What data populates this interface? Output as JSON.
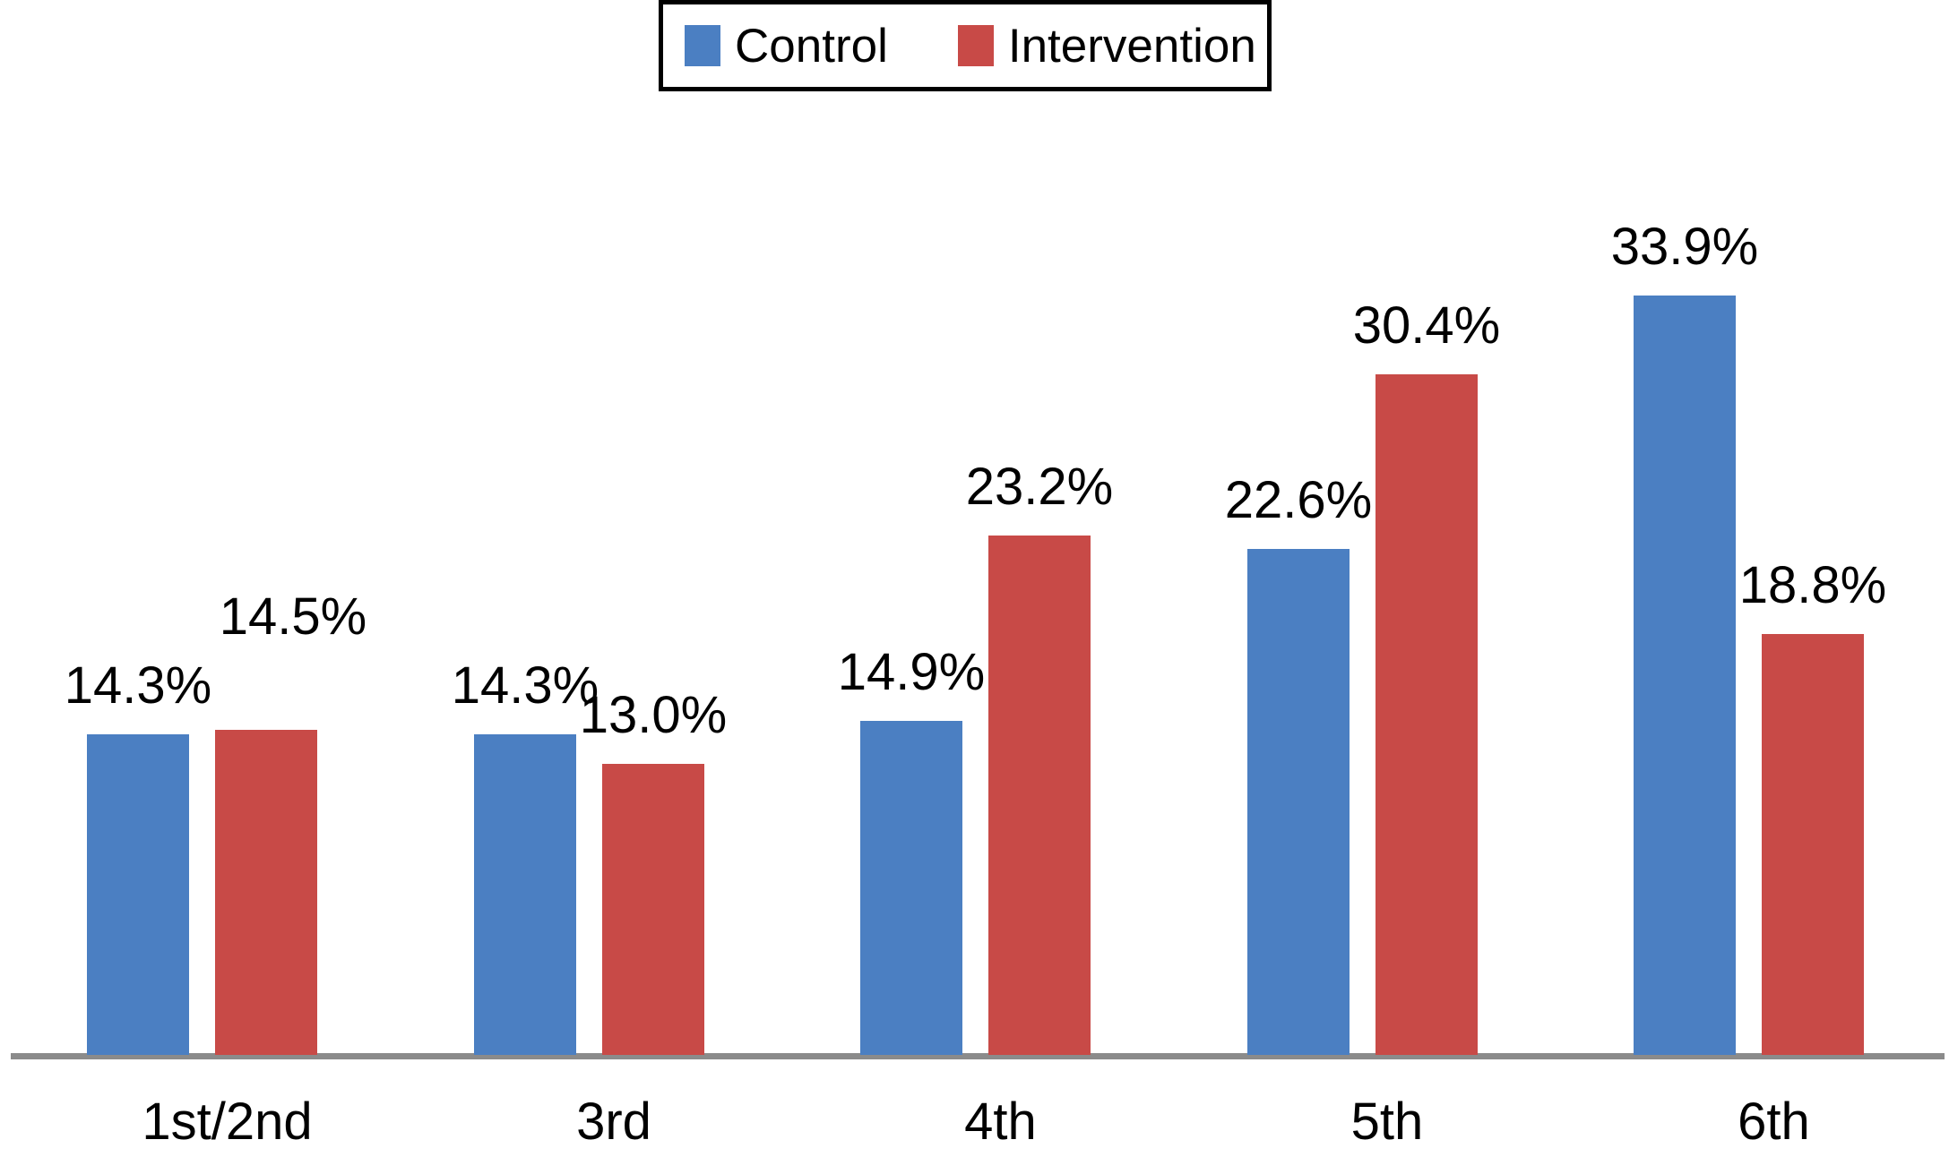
{
  "chart_data": {
    "type": "bar",
    "title": "",
    "categories": [
      "1st/2nd",
      "3rd",
      "4th",
      "5th",
      "6th"
    ],
    "series": [
      {
        "name": "Control",
        "color": "#4b7fc2",
        "values": [
          14.3,
          14.3,
          14.9,
          22.6,
          33.9
        ],
        "labels": [
          "14.3%",
          "14.3%",
          "14.9%",
          "22.6%",
          "33.9%"
        ]
      },
      {
        "name": "Intervention",
        "color": "#c84a47",
        "values": [
          14.5,
          13.0,
          23.2,
          30.4,
          18.8
        ],
        "labels": [
          "14.5%",
          "13.0%",
          "23.2%",
          "30.4%",
          "18.8%"
        ]
      }
    ],
    "ylim": [
      0,
      47
    ],
    "grid": false,
    "y_axis_shown": false,
    "legend_position": "top-center",
    "axis_line_color": "#8b8b8b",
    "value_label_color": "#000000",
    "label_extra_offsets": {
      "Control": [
        0,
        0,
        0,
        0,
        0
      ],
      "Intervention": [
        72,
        0,
        0,
        0,
        0
      ]
    },
    "label_dx": {
      "Control": [
        0,
        0,
        0,
        0,
        0
      ],
      "Intervention": [
        30,
        0,
        0,
        0,
        0
      ]
    }
  },
  "legend": {
    "items": [
      {
        "label": "Control",
        "color": "#4b7fc2"
      },
      {
        "label": "Intervention",
        "color": "#c84a47"
      }
    ]
  }
}
